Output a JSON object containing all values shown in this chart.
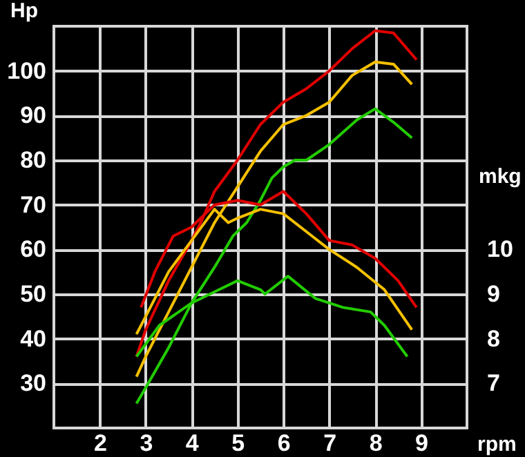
{
  "chart_data": {
    "type": "line",
    "xlabel": "rpm",
    "ylabel": "Hp",
    "y2label": "mkg",
    "xlim": [
      1,
      10
    ],
    "xticks": [
      2,
      3,
      4,
      5,
      6,
      7,
      8,
      9
    ],
    "ylim": [
      20,
      110
    ],
    "yticks": [
      30,
      40,
      50,
      60,
      70,
      80,
      90,
      100
    ],
    "y2lim": [
      6,
      15
    ],
    "y2ticks": [
      7,
      8,
      9,
      10
    ],
    "grid": true,
    "series": [
      {
        "color": "#e00000",
        "x": [
          2.8,
          3,
          3.5,
          4,
          4.2,
          4.5,
          5,
          5.5,
          6,
          6.5,
          7,
          7.5,
          8,
          8.4,
          8.9
        ],
        "values": [
          36,
          42,
          53,
          62,
          66,
          73,
          80,
          88,
          93,
          96,
          100,
          105,
          109,
          108.5,
          102.5
        ]
      },
      {
        "color": "#f5c000",
        "x": [
          2.8,
          3,
          3.5,
          4,
          4.5,
          5,
          5.5,
          6,
          6.5,
          7,
          7.5,
          8,
          8.4,
          8.8
        ],
        "values": [
          31.5,
          36,
          46,
          56,
          66,
          74,
          82,
          88,
          90,
          93,
          99,
          102,
          101.5,
          97
        ]
      },
      {
        "color": "#22cc00",
        "x": [
          2.8,
          3,
          3.5,
          4,
          4.5,
          4.9,
          5.2,
          5.5,
          5.75,
          6,
          6.25,
          6.5,
          7,
          7.6,
          8,
          8.4,
          8.8
        ],
        "values": [
          25.5,
          29,
          38,
          48,
          56,
          63,
          66,
          71,
          76,
          78.5,
          80,
          80,
          83.5,
          89,
          91.5,
          88.5,
          85
        ]
      },
      {
        "color": "#e00000",
        "axis": "y2",
        "x": [
          2.9,
          3.2,
          3.6,
          4,
          4.5,
          5,
          5.5,
          6,
          6.5,
          7,
          7.5,
          8,
          8.5,
          8.9
        ],
        "values": [
          8.7,
          9.5,
          10.3,
          10.5,
          11,
          11.1,
          11,
          11.3,
          10.8,
          10.2,
          10.1,
          9.8,
          9.3,
          8.7
        ]
      },
      {
        "color": "#f5c000",
        "axis": "y2",
        "x": [
          2.8,
          3,
          3.5,
          4,
          4.5,
          4.8,
          5,
          5.5,
          6,
          6.5,
          7,
          7.6,
          8.2,
          8.8
        ],
        "values": [
          8.1,
          8.5,
          9.5,
          10.2,
          10.9,
          10.6,
          10.7,
          10.9,
          10.8,
          10.4,
          10,
          9.6,
          9.1,
          8.2
        ]
      },
      {
        "color": "#22cc00",
        "axis": "y2",
        "x": [
          2.8,
          3.3,
          4,
          4.6,
          5,
          5.5,
          5.6,
          6.1,
          6.7,
          7.3,
          7.9,
          8.2,
          8.7
        ],
        "values": [
          7.6,
          8.3,
          8.8,
          9.1,
          9.3,
          9.1,
          9,
          9.4,
          8.9,
          8.7,
          8.6,
          8.3,
          7.6
        ]
      }
    ]
  }
}
